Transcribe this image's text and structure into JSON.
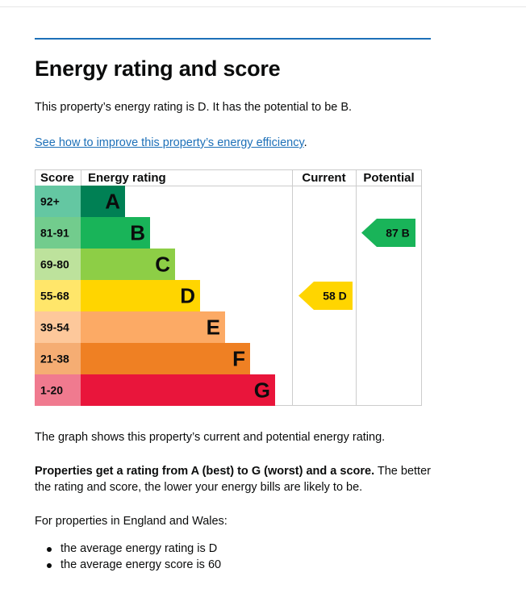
{
  "page": {
    "title": "Energy rating and score",
    "intro": "This property’s energy rating is D. It has the potential to be B.",
    "improve_link": "See how to improve this property’s energy efficiency",
    "improve_link_suffix": ".",
    "graph_summary": "The graph shows this property’s current and potential energy rating.",
    "ratings_bold": "Properties get a rating from A (best) to G (worst) and a score.",
    "ratings_rest": " The better the rating and score, the lower your energy bills are likely to be.",
    "region": "For properties in England and Wales:",
    "averages": [
      "the average energy rating is D",
      "the average energy score is 60"
    ]
  },
  "epc_table": {
    "headers": {
      "score": "Score",
      "rating": "Energy rating",
      "current": "Current",
      "potential": "Potential"
    },
    "bands": [
      {
        "range": "92+",
        "letter": "A",
        "color": "#008054",
        "range_color": "#64c7a2"
      },
      {
        "range": "81-91",
        "letter": "B",
        "color": "#19b459",
        "range_color": "#72cc8d"
      },
      {
        "range": "69-80",
        "letter": "C",
        "color": "#8dce46",
        "range_color": "#bde29c"
      },
      {
        "range": "55-68",
        "letter": "D",
        "color": "#ffd500",
        "range_color": "#ffe66a"
      },
      {
        "range": "39-54",
        "letter": "E",
        "color": "#fcaa65",
        "range_color": "#fdc89b"
      },
      {
        "range": "21-38",
        "letter": "F",
        "color": "#ef8023",
        "range_color": "#f5ad73"
      },
      {
        "range": "1-20",
        "letter": "G",
        "color": "#e9153b",
        "range_color": "#f07a8f"
      }
    ],
    "current": {
      "score": 58,
      "letter": "D",
      "label": "58 D",
      "color": "#ffd500"
    },
    "potential": {
      "score": 87,
      "letter": "B",
      "label": "87 B",
      "color": "#19b459"
    }
  }
}
